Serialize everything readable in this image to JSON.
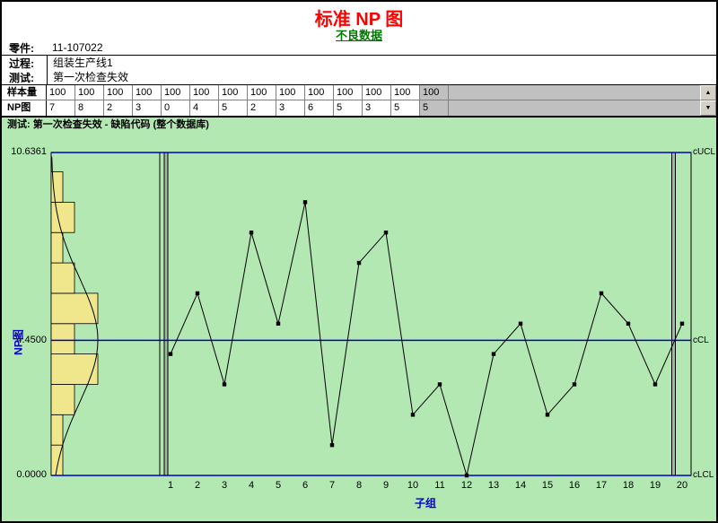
{
  "header": {
    "title": "标准 NP 图",
    "subtitle": "不良数据"
  },
  "info": {
    "part_label": "零件:",
    "part_value": "11-107022",
    "process_label": "过程:",
    "process_value": "组装生产线1",
    "test_label": "测试:",
    "test_value": "第一次检查失效"
  },
  "table": {
    "rows": [
      {
        "header": "样本量",
        "cells": [
          "100",
          "100",
          "100",
          "100",
          "100",
          "100",
          "100",
          "100",
          "100",
          "100",
          "100",
          "100",
          "100"
        ],
        "selected_cell": "100"
      },
      {
        "header": "NP图",
        "cells": [
          "7",
          "8",
          "2",
          "3",
          "0",
          "4",
          "5",
          "2",
          "3",
          "6",
          "5",
          "3",
          "5"
        ],
        "selected_cell": "5"
      }
    ],
    "scrollbar": {
      "up_arrow": "▲",
      "down_arrow": "▼"
    }
  },
  "chart_header": "测试: 第一次检查失效 - 缺陷代码 (整个数据库)",
  "chart_data": {
    "type": "line",
    "chart_kind": "np-control-chart",
    "title": "测试: 第一次检查失效 - 缺陷代码 (整个数据库)",
    "xlabel": "子组",
    "ylabel": "NP图",
    "x": [
      "1",
      "2",
      "3",
      "4",
      "5",
      "6",
      "7",
      "8",
      "9",
      "10",
      "11",
      "12",
      "13",
      "14",
      "15",
      "16",
      "17",
      "18",
      "19",
      "20"
    ],
    "values": [
      4,
      6,
      3,
      8,
      5,
      9,
      1,
      7,
      8,
      2,
      3,
      0,
      4,
      5,
      2,
      3,
      6,
      5,
      3,
      5
    ],
    "ylim": [
      0,
      10.6361
    ],
    "limits": {
      "ucl": 10.6361,
      "cl": 4.45,
      "lcl": 0
    },
    "left_axis_labels": [
      "10.6361",
      "4.4500",
      "0.0000"
    ],
    "right_axis_labels": [
      "cUCL",
      "cCL",
      "cLCL"
    ],
    "legend": "none",
    "grid": "off",
    "histogram": {
      "orientation": "horizontal",
      "bin_start": 0,
      "bin_width": 1,
      "frequencies": [
        1,
        1,
        2,
        4,
        2,
        4,
        2,
        1,
        2,
        1
      ]
    },
    "curve": {
      "type": "normal",
      "mean": 4.45,
      "sd": 2.06
    },
    "colors": {
      "background": "#b3e8b3",
      "limit_line": "#0000cc",
      "series": "#000000",
      "bar_fill": "#f0e68c",
      "title_red": "#ff0000",
      "subtitle_green": "#007800",
      "axis_label_blue": "#0000cc",
      "selected_cell_gray": "#c0c0c0"
    }
  }
}
